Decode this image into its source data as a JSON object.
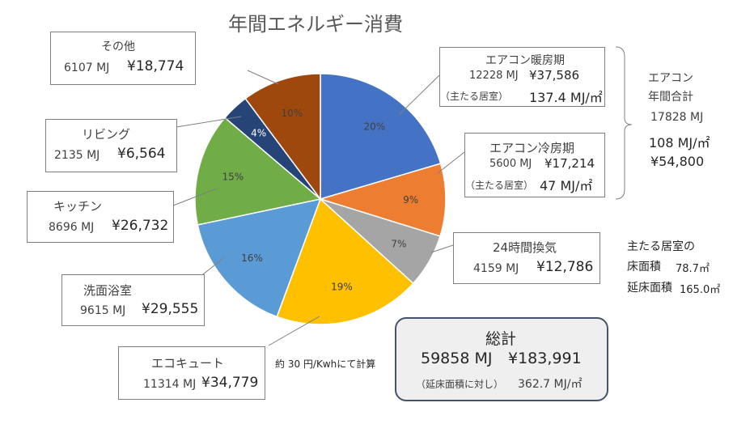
{
  "chart_data": {
    "type": "pie",
    "title": "年間エネルギー消費",
    "slices": [
      {
        "name": "エアコン暖房期",
        "percent_label": "20%",
        "mj": 12228,
        "mj_label": "12228 MJ",
        "yen": "¥37,586",
        "color": "#4472c4"
      },
      {
        "name": "エアコン冷房期",
        "percent_label": "9%",
        "mj": 5600,
        "mj_label": "5600 MJ",
        "yen": "¥17,214",
        "color": "#ed7d31"
      },
      {
        "name": "24時間換気",
        "percent_label": "7%",
        "mj": 4159,
        "mj_label": "4159 MJ",
        "yen": "¥12,786",
        "color": "#a5a5a5"
      },
      {
        "name": "エコキュート",
        "percent_label": "19%",
        "mj": 11314,
        "mj_label": "11314 MJ",
        "yen": "¥34,779",
        "color": "#ffc000"
      },
      {
        "name": "洗面浴室",
        "percent_label": "16%",
        "mj": 9615,
        "mj_label": "9615 MJ",
        "yen": "¥29,555",
        "color": "#5b9bd5"
      },
      {
        "name": "キッチン",
        "percent_label": "15%",
        "mj": 8696,
        "mj_label": "8696 MJ",
        "yen": "¥26,732",
        "color": "#70ad47"
      },
      {
        "name": "リビング",
        "percent_label": "4%",
        "mj": 2135,
        "mj_label": "2135 MJ",
        "yen": "¥6,564",
        "color": "#264478"
      },
      {
        "name": "その他",
        "percent_label": "10%",
        "mj": 6107,
        "mj_label": "6107 MJ",
        "yen": "¥18,774",
        "color": "#9e480e"
      }
    ],
    "heating_note": {
      "prefix": "（主たる居室）",
      "value": "137.4 MJ/㎡"
    },
    "cooling_note": {
      "prefix": "（主たる居室）",
      "value": "47 MJ/㎡"
    }
  },
  "aircon_total": {
    "label_line1": "エアコン",
    "label_line2": "年間合計",
    "mj": "17828 MJ",
    "per_area": "108 MJ/㎡",
    "yen": "¥54,800"
  },
  "floor_area": {
    "line1": "主たる居室の",
    "main_label": "床面積",
    "main_value": "78.7㎡",
    "total_label": "延床面積",
    "total_value": "165.0㎡"
  },
  "rate_note": "約 30 円/Kwhにて計算",
  "total": {
    "title": "総計",
    "mj": "59858 MJ",
    "yen": "¥183,991",
    "per_area_prefix": "（延床面積に対し）",
    "per_area_value": "362.7 MJ/㎡"
  }
}
